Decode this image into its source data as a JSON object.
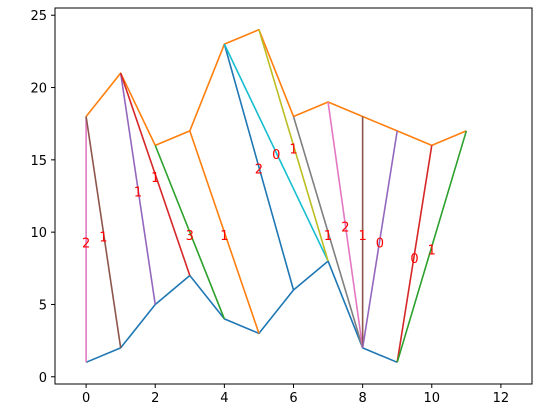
{
  "chart_data": {
    "type": "line",
    "title": "",
    "xlabel": "",
    "ylabel": "",
    "xlim": [
      -0.9,
      12.9
    ],
    "ylim": [
      -0.5,
      25.5
    ],
    "xticks": [
      0,
      2,
      4,
      6,
      8,
      10,
      12
    ],
    "yticks": [
      0,
      5,
      10,
      15,
      20,
      25
    ],
    "grid": false,
    "series": [
      {
        "color": "#1f77b4",
        "points": [
          [
            0,
            1
          ],
          [
            1,
            2
          ],
          [
            2,
            5
          ],
          [
            3,
            7
          ],
          [
            4,
            4
          ],
          [
            5,
            3
          ],
          [
            6,
            6
          ],
          [
            7,
            8
          ],
          [
            8,
            2
          ],
          [
            9,
            1
          ]
        ]
      },
      {
        "color": "#ff7f0e",
        "points": [
          [
            0,
            18
          ],
          [
            1,
            21
          ],
          [
            2,
            16
          ],
          [
            3,
            17
          ],
          [
            4,
            23
          ],
          [
            5,
            24
          ],
          [
            6,
            18
          ],
          [
            7,
            19
          ],
          [
            8,
            18
          ],
          [
            9,
            17
          ],
          [
            10,
            16
          ],
          [
            11,
            17
          ]
        ]
      },
      {
        "color": "#e377c2",
        "points": [
          [
            0,
            1
          ],
          [
            0,
            18
          ]
        ]
      },
      {
        "color": "#8c564b",
        "points": [
          [
            0,
            18
          ],
          [
            1,
            2
          ]
        ]
      },
      {
        "color": "#9467bd",
        "points": [
          [
            1,
            21
          ],
          [
            2,
            5
          ]
        ]
      },
      {
        "color": "#d62728",
        "points": [
          [
            1,
            21
          ],
          [
            3,
            7
          ]
        ]
      },
      {
        "color": "#2ca02c",
        "points": [
          [
            2,
            16
          ],
          [
            4,
            4
          ]
        ]
      },
      {
        "color": "#ff7f0e",
        "points": [
          [
            3,
            17
          ],
          [
            5,
            3
          ]
        ]
      },
      {
        "color": "#1f77b4",
        "points": [
          [
            4,
            23
          ],
          [
            6,
            6
          ]
        ]
      },
      {
        "color": "#17becf",
        "points": [
          [
            4,
            23
          ],
          [
            7,
            8
          ]
        ]
      },
      {
        "color": "#bcbd22",
        "points": [
          [
            5,
            24
          ],
          [
            7,
            8
          ]
        ]
      },
      {
        "color": "#7f7f7f",
        "points": [
          [
            6,
            18
          ],
          [
            8,
            2
          ]
        ]
      },
      {
        "color": "#e377c2",
        "points": [
          [
            7,
            19
          ],
          [
            8,
            2
          ]
        ]
      },
      {
        "color": "#8c564b",
        "points": [
          [
            8,
            18
          ],
          [
            8,
            2
          ]
        ]
      },
      {
        "color": "#9467bd",
        "points": [
          [
            9,
            17
          ],
          [
            8,
            2
          ]
        ]
      },
      {
        "color": "#d62728",
        "points": [
          [
            10,
            16
          ],
          [
            9,
            1
          ]
        ]
      },
      {
        "color": "#2ca02c",
        "points": [
          [
            11,
            17
          ],
          [
            9,
            1
          ]
        ]
      }
    ],
    "annotations": [
      {
        "text": "2",
        "x": 0.0,
        "y": 9.3
      },
      {
        "text": "1",
        "x": 0.5,
        "y": 9.7
      },
      {
        "text": "1",
        "x": 1.5,
        "y": 12.8
      },
      {
        "text": "1",
        "x": 2.0,
        "y": 13.8
      },
      {
        "text": "3",
        "x": 3.0,
        "y": 9.8
      },
      {
        "text": "1",
        "x": 4.0,
        "y": 9.8
      },
      {
        "text": "2",
        "x": 5.0,
        "y": 14.4
      },
      {
        "text": "0",
        "x": 5.5,
        "y": 15.4
      },
      {
        "text": "1",
        "x": 6.0,
        "y": 15.8
      },
      {
        "text": "1",
        "x": 7.0,
        "y": 9.8
      },
      {
        "text": "2",
        "x": 7.5,
        "y": 10.4
      },
      {
        "text": "1",
        "x": 8.0,
        "y": 9.8
      },
      {
        "text": "0",
        "x": 8.5,
        "y": 9.3
      },
      {
        "text": "0",
        "x": 9.5,
        "y": 8.2
      },
      {
        "text": "1",
        "x": 10.0,
        "y": 8.8
      }
    ]
  }
}
